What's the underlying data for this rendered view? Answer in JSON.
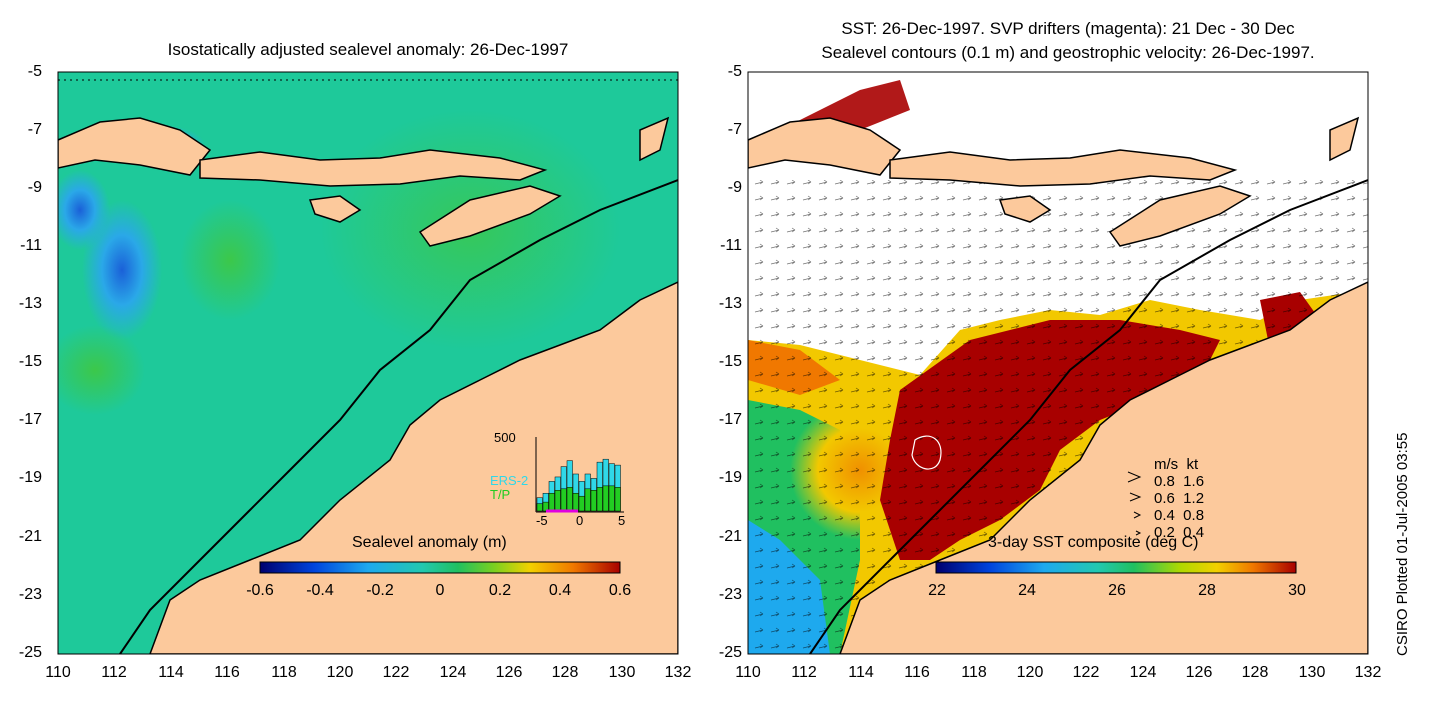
{
  "left_panel": {
    "title": "Isostatically adjusted sealevel anomaly: 26-Dec-1997",
    "colorbar": {
      "title": "Sealevel anomaly (m)",
      "ticks": [
        "-0.6",
        "-0.4",
        "-0.2",
        "0",
        "0.2",
        "0.4",
        "0.6"
      ]
    },
    "inset": {
      "ymax_label": "500",
      "series_labels": [
        "ERS-2",
        "T/P"
      ],
      "x_ticks": [
        "-5",
        "0",
        "5"
      ],
      "ers2_counts": [
        90,
        120,
        200,
        230,
        300,
        340,
        250,
        200,
        250,
        220,
        330,
        350,
        320,
        310
      ],
      "tp_counts": [
        50,
        60,
        120,
        140,
        150,
        160,
        120,
        100,
        150,
        140,
        160,
        170,
        170,
        160
      ]
    },
    "colors": {
      "sea": "#1ec99a",
      "land": "#fcc99c"
    }
  },
  "right_panel": {
    "title_line1": "SST: 26-Dec-1997. SVP drifters (magenta): 21 Dec - 30 Dec",
    "title_line2": "Sealevel contours (0.1 m) and geostrophic velocity: 26-Dec-1997.",
    "colorbar": {
      "title": "3-day SST composite (deg C)",
      "ticks": [
        "22",
        "24",
        "26",
        "28",
        "30"
      ]
    },
    "velocity_legend": {
      "header": "m/s  kt",
      "rows": [
        "0.8  1.6",
        "0.6  1.2",
        "0.4  0.8",
        "0.2  0.4"
      ]
    }
  },
  "axes": {
    "y_ticks": [
      "-5",
      "-7",
      "-9",
      "-11",
      "-13",
      "-15",
      "-17",
      "-19",
      "-21",
      "-23",
      "-25"
    ],
    "x_ticks": [
      "110",
      "112",
      "114",
      "116",
      "118",
      "120",
      "122",
      "124",
      "126",
      "128",
      "130",
      "132"
    ]
  },
  "credit": "CSIRO Plotted 01-Jul-2005 03:55"
}
